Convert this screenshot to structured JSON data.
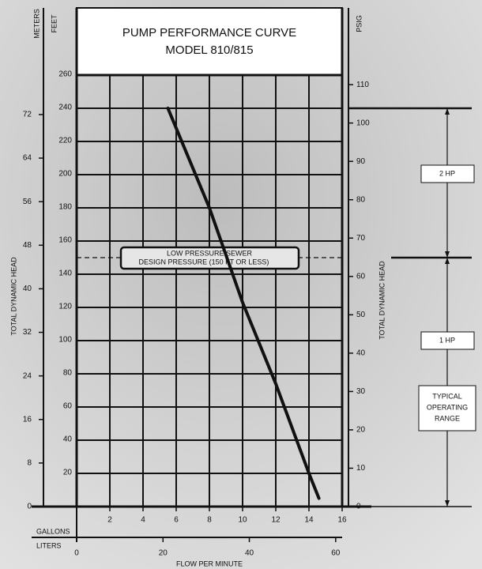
{
  "chart_data": {
    "type": "line",
    "title": [
      "PUMP PERFORMANCE CURVE",
      "MODEL 810/815"
    ],
    "x_label": "GALLONS",
    "x2_label": "LITERS",
    "x_title": "FLOW PER MINUTE",
    "y_label": "FEET",
    "y3_label": "METERS",
    "y2_label": "PSIG",
    "y_title": "TOTAL DYNAMIC HEAD",
    "y2_title": "TOTAL DYNAMIC HEAD",
    "x": [
      5.5,
      6,
      8,
      10,
      12,
      14,
      14.6
    ],
    "values": [
      240,
      228,
      180,
      123,
      74,
      20,
      5
    ],
    "color": "#111111",
    "xlim": [
      0,
      16
    ],
    "xticks": [
      2,
      4,
      6,
      8,
      10,
      12,
      14,
      16
    ],
    "x2lim": [
      0,
      61.5
    ],
    "x2ticks": [
      0,
      20,
      40,
      60
    ],
    "ylim": [
      0,
      260
    ],
    "yticks": [
      20,
      40,
      60,
      80,
      100,
      120,
      140,
      160,
      180,
      200,
      220,
      240,
      260
    ],
    "y3lim": [
      0,
      79.25
    ],
    "y3ticks": [
      0,
      8,
      16,
      24,
      32,
      40,
      48,
      56,
      64,
      72
    ],
    "y2lim": [
      0,
      112.5
    ],
    "y2ticks": [
      0,
      10,
      20,
      30,
      40,
      50,
      60,
      70,
      80,
      90,
      100,
      110
    ],
    "grid": true,
    "design_pressure": {
      "value": 150,
      "label": [
        "LOW PRESSURE SEWER",
        "DESIGN PRESSURE (150 FT OR LESS)"
      ]
    },
    "hp_ranges": [
      {
        "label": "2 HP",
        "from": 150,
        "to": 240
      },
      {
        "label": "1 HP",
        "from": 0,
        "to": 150
      }
    ],
    "operating_range": [
      "TYPICAL",
      "OPERATING",
      "RANGE"
    ]
  }
}
